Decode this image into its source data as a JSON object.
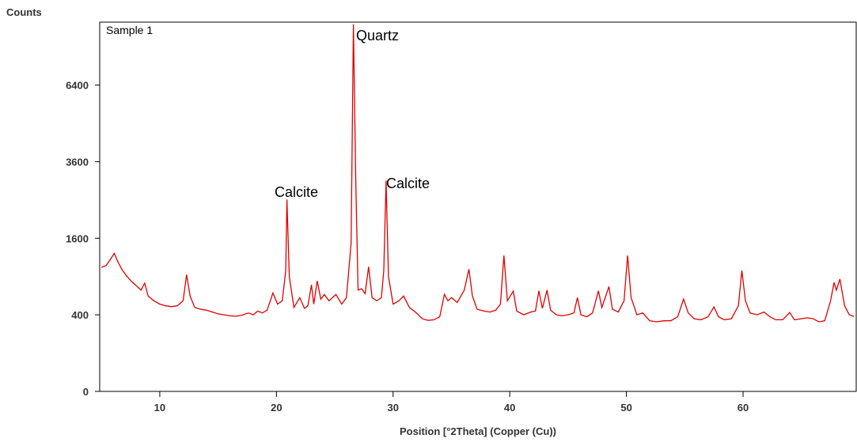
{
  "chart_data": {
    "type": "line",
    "title": "Sample 1",
    "x_label": "Position [°2Theta] (Copper (Cu))",
    "y_label": "Counts",
    "yscale": "sqrt",
    "color": "#e00000",
    "annotations": [
      "Calcite",
      "Quartz",
      "Calcite"
    ],
    "xlim": [
      4.85,
      69.7
    ],
    "xticks": [
      10,
      20,
      30,
      40,
      50,
      60
    ],
    "ylim": [
      0,
      9300
    ],
    "yticks": [
      0,
      400,
      1600,
      3600,
      6400
    ],
    "x": [
      5.0,
      5.4,
      5.8,
      6.1,
      6.4,
      6.8,
      7.2,
      7.6,
      8.0,
      8.4,
      8.7,
      9.0,
      9.5,
      10.0,
      10.5,
      11.0,
      11.5,
      12.0,
      12.3,
      12.6,
      13.0,
      13.5,
      14.0,
      14.5,
      15.0,
      15.5,
      16.0,
      16.5,
      17.0,
      17.6,
      18.0,
      18.4,
      18.8,
      19.2,
      19.7,
      20.1,
      20.5,
      20.8,
      20.9,
      21.1,
      21.5,
      22.0,
      22.4,
      22.7,
      23.0,
      23.2,
      23.5,
      23.8,
      24.1,
      24.5,
      25.1,
      25.6,
      26.0,
      26.4,
      26.6,
      26.8,
      27.0,
      27.3,
      27.6,
      27.9,
      28.2,
      28.6,
      29.0,
      29.2,
      29.4,
      29.6,
      30.0,
      30.5,
      30.9,
      31.4,
      32.0,
      32.5,
      33.0,
      33.5,
      34.0,
      34.4,
      34.7,
      35.0,
      35.5,
      36.1,
      36.5,
      36.8,
      37.2,
      37.8,
      38.3,
      38.8,
      39.2,
      39.5,
      39.8,
      40.3,
      40.6,
      41.2,
      41.8,
      42.2,
      42.5,
      42.8,
      43.2,
      43.5,
      44.0,
      44.5,
      45.0,
      45.5,
      45.8,
      46.1,
      46.6,
      47.1,
      47.6,
      47.9,
      48.5,
      48.8,
      49.3,
      49.8,
      50.1,
      50.4,
      50.9,
      51.4,
      52.0,
      52.6,
      53.2,
      53.8,
      54.4,
      54.9,
      55.3,
      55.8,
      56.4,
      57.0,
      57.5,
      57.9,
      58.4,
      59.0,
      59.6,
      59.9,
      60.2,
      60.6,
      61.2,
      61.8,
      62.3,
      62.8,
      63.4,
      64.0,
      64.4,
      65.0,
      65.5,
      66.0,
      66.5,
      67.0,
      67.5,
      67.8,
      68.0,
      68.3,
      68.7,
      69.1,
      69.5
    ],
    "values": [
      1050,
      1080,
      1200,
      1300,
      1150,
      1000,
      900,
      820,
      760,
      700,
      800,
      620,
      560,
      520,
      500,
      490,
      500,
      560,
      930,
      620,
      480,
      460,
      450,
      430,
      410,
      400,
      390,
      385,
      395,
      420,
      400,
      440,
      420,
      450,
      660,
      520,
      560,
      1000,
      2510,
      900,
      480,
      600,
      470,
      500,
      775,
      520,
      833,
      580,
      640,
      560,
      640,
      520,
      600,
      1500,
      9190,
      3000,
      700,
      718,
      650,
      1060,
      600,
      560,
      600,
      1000,
      3030,
      900,
      520,
      560,
      620,
      480,
      420,
      360,
      344,
      350,
      380,
      643,
      560,
      600,
      540,
      700,
      1020,
      620,
      460,
      440,
      430,
      450,
      520,
      1258,
      560,
      686,
      440,
      400,
      430,
      440,
      690,
      470,
      700,
      450,
      400,
      390,
      400,
      420,
      600,
      400,
      380,
      420,
      690,
      480,
      750,
      460,
      430,
      560,
      1258,
      600,
      400,
      420,
      340,
      330,
      340,
      340,
      380,
      582,
      420,
      360,
      350,
      380,
      486,
      380,
      350,
      360,
      500,
      995,
      560,
      420,
      400,
      430,
      380,
      350,
      350,
      425,
      350,
      360,
      370,
      360,
      330,
      340,
      560,
      810,
      700,
      860,
      500,
      400,
      384
    ]
  }
}
